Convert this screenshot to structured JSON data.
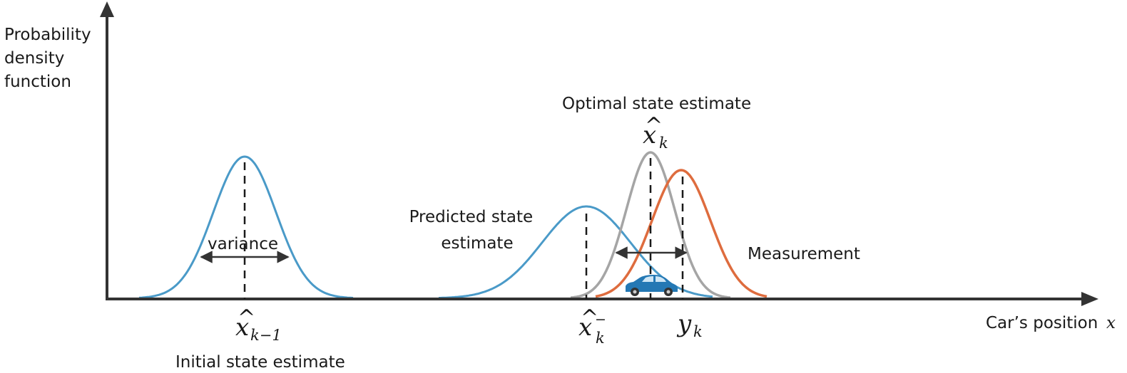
{
  "axes": {
    "y_label_lines": [
      "Probability",
      "density",
      "function"
    ],
    "x_label": "Car’s position",
    "x_var": "x"
  },
  "colors": {
    "axis": "#333333",
    "prior": "#4a9ac8",
    "predicted": "#4a9ac8",
    "optimal": "#a5a5a5",
    "measurement": "#de6c3e",
    "car": "#2478b4"
  },
  "annotations": {
    "variance": "variance",
    "predicted_lines": [
      "Predicted state",
      "estimate"
    ],
    "optimal": "Optimal state estimate",
    "measurement": "Measurement",
    "initial": "Initial state estimate"
  },
  "symbols": {
    "prior": {
      "base": "x",
      "hat": "^",
      "sub": "k−1"
    },
    "predicted": {
      "base": "x",
      "hat": "^",
      "sub": "k",
      "sup": "−"
    },
    "optimal": {
      "base": "x",
      "hat": "^",
      "sub": "k"
    },
    "measurement": {
      "base": "y",
      "sub": "k"
    }
  },
  "icons": {
    "car": "car-icon"
  }
}
